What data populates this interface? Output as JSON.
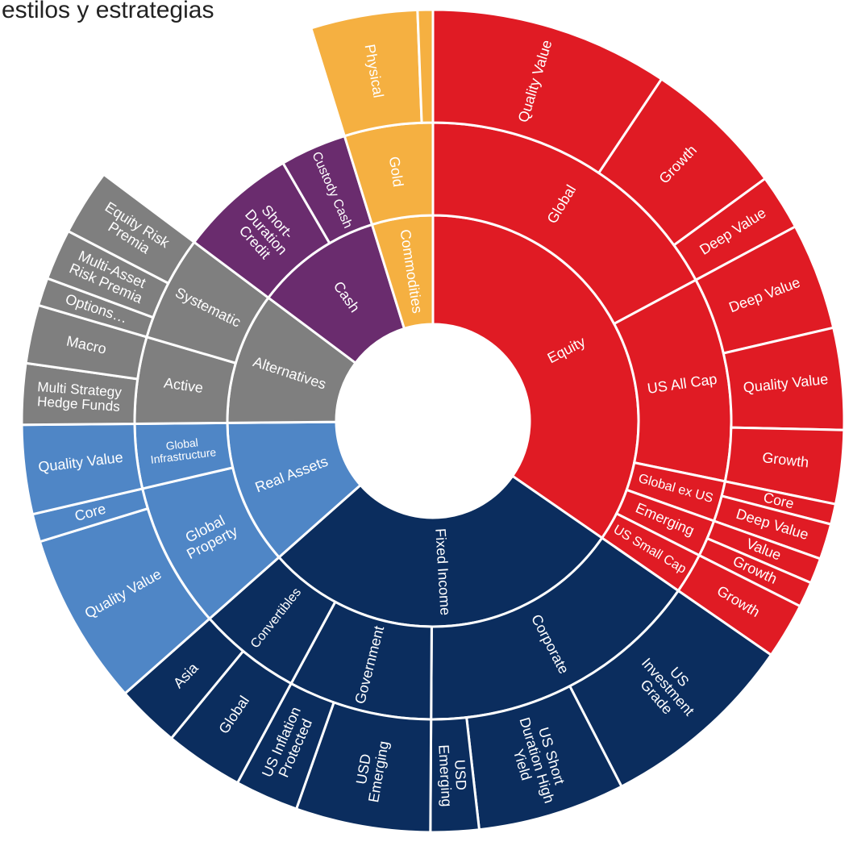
{
  "chart_data": {
    "type": "sunburst",
    "title": "estilos y estrategias",
    "children": [
      {
        "label": [
          "Equity"
        ],
        "color": "#e01b24",
        "children": [
          {
            "label": [
              "Global"
            ],
            "children": [
              {
                "label": [
                  "Quality Value"
                ],
                "value": 9.4
              },
              {
                "label": [
                  "Growth"
                ],
                "value": 5.6
              },
              {
                "label": [
                  "Deep Value"
                ],
                "value": 2.2
              }
            ]
          },
          {
            "label": [
              "US All Cap"
            ],
            "children": [
              {
                "label": [
                  "Deep Value"
                ],
                "value": 4.2
              },
              {
                "label": [
                  "Quality Value"
                ],
                "value": 4.0
              },
              {
                "label": [
                  "Growth"
                ],
                "value": 2.9
              }
            ]
          },
          {
            "label": [
              "Global ex US"
            ],
            "children": [
              {
                "label": [
                  "Core"
                ],
                "value": 0.8
              },
              {
                "label": [
                  "Deep Value"
                ],
                "value": 1.4
              }
            ]
          },
          {
            "label": [
              "Emerging"
            ],
            "children": [
              {
                "label": [
                  "Value"
                ],
                "value": 1.0
              },
              {
                "label": [
                  "Growth"
                ],
                "value": 1.0
              }
            ]
          },
          {
            "label": [
              "US Small Cap"
            ],
            "children": [
              {
                "label": [
                  "Growth"
                ],
                "value": 2.2
              }
            ]
          }
        ]
      },
      {
        "label": [
          "Fixed Income"
        ],
        "color": "#0b2d5e",
        "children": [
          {
            "label": [
              "Corporate"
            ],
            "children": [
              {
                "label": [
                  "US",
                  "Investment",
                  "Grade"
                ],
                "value": 7.8
              },
              {
                "label": [
                  "US Short",
                  "Duration High",
                  "Yield"
                ],
                "value": 5.8
              },
              {
                "label": [
                  "USD",
                  "Emerging"
                ],
                "value": 1.9
              }
            ]
          },
          {
            "label": [
              "Government"
            ],
            "children": [
              {
                "label": [
                  "USD",
                  "Emerging"
                ],
                "value": 5.3
              },
              {
                "label": [
                  "US Inflation",
                  "Protected"
                ],
                "value": 2.5
              }
            ]
          },
          {
            "label": [
              "Convertibles"
            ],
            "children": [
              {
                "label": [
                  "Global"
                ],
                "value": 3.1
              },
              {
                "label": [
                  "Asia"
                ],
                "value": 2.5
              }
            ]
          }
        ]
      },
      {
        "label": [
          "Real Assets"
        ],
        "color": "#4f86c6",
        "children": [
          {
            "label": [
              "Global",
              "Property"
            ],
            "children": [
              {
                "label": [
                  "Quality Value"
                ],
                "value": 6.8
              },
              {
                "label": [
                  "Core"
                ],
                "value": 1.1
              }
            ]
          },
          {
            "label": [
              "Global",
              "Infrastructure"
            ],
            "children": [
              {
                "label": [
                  "Quality Value"
                ],
                "value": 3.5
              }
            ]
          }
        ]
      },
      {
        "label": [
          "Alternatives"
        ],
        "color": "#7f7f7f",
        "children": [
          {
            "label": [
              "Active"
            ],
            "children": [
              {
                "label": [
                  "Multi Strategy",
                  "Hedge Funds"
                ],
                "value": 2.4
              },
              {
                "label": [
                  "Macro"
                ],
                "value": 2.3
              }
            ]
          },
          {
            "label": [
              "Systematic"
            ],
            "children": [
              {
                "label": [
                  "Options…"
                ],
                "value": 1.1
              },
              {
                "label": [
                  "Multi-Asset",
                  "Risk Premia"
                ],
                "value": 2.0
              },
              {
                "label": [
                  "Equity Risk",
                  "Premia"
                ],
                "value": 2.6
              }
            ]
          }
        ]
      },
      {
        "label": [
          "Cash"
        ],
        "color": "#6a2c6e",
        "children": [
          {
            "label": [
              "Short-",
              "Duration",
              "Credit"
            ],
            "value": 6.4
          },
          {
            "label": [
              "Custody Cash"
            ],
            "value": 3.6
          }
        ]
      },
      {
        "label": [
          "Commodities"
        ],
        "color": "#f5b041",
        "children": [
          {
            "label": [
              "Gold"
            ],
            "children": [
              {
                "label": [
                  "Physical"
                ],
                "value": 4.2
              },
              {
                "label": null,
                "value": 0.6
              }
            ]
          }
        ]
      }
    ]
  }
}
